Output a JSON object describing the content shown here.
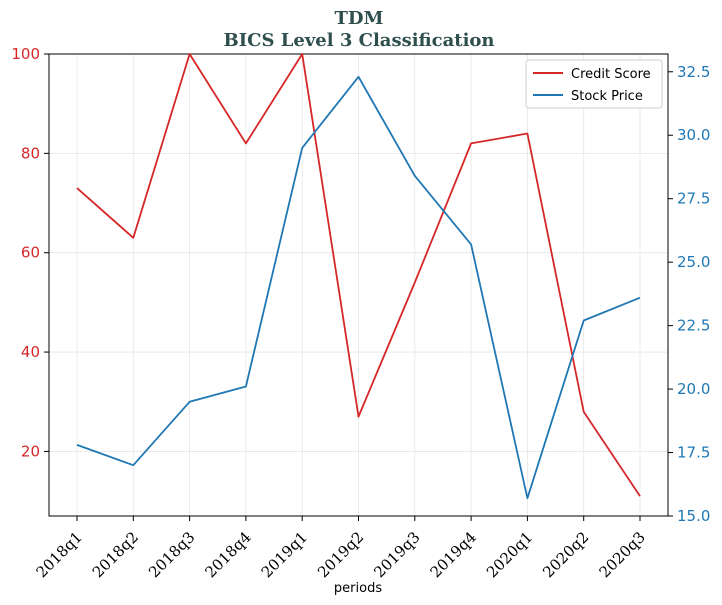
{
  "chart_data": {
    "type": "line",
    "title": "TDM",
    "subtitle": "BICS Level 3 Classification",
    "xlabel": "periods",
    "categories": [
      "2018q1",
      "2018q2",
      "2018q3",
      "2018q4",
      "2019q1",
      "2019q2",
      "2019q3",
      "2019q4",
      "2020q1",
      "2020q2",
      "2020q3"
    ],
    "series": [
      {
        "name": "Credit Score",
        "axis": "left",
        "color": "#d62728",
        "values": [
          73,
          63,
          100,
          82,
          100,
          27,
          54,
          82,
          84,
          28,
          11
        ]
      },
      {
        "name": "Stock Price",
        "axis": "right",
        "color": "#1f77b4",
        "values": [
          17.8,
          17.0,
          19.5,
          20.1,
          29.5,
          32.3,
          28.4,
          25.7,
          15.7,
          22.7,
          23.6
        ]
      }
    ],
    "y_left": {
      "ylim": [
        7,
        100
      ],
      "ticks": [
        20,
        40,
        60,
        80,
        100
      ],
      "color": "#d62728"
    },
    "y_right": {
      "ylim": [
        15.0,
        33.2
      ],
      "ticks": [
        "15.0",
        "17.5",
        "20.0",
        "22.5",
        "25.0",
        "27.5",
        "30.0",
        "32.5"
      ],
      "color": "#1f77b4"
    },
    "grid": true,
    "legend": {
      "position": "top-right",
      "entries": [
        "Credit Score",
        "Stock Price"
      ]
    }
  }
}
